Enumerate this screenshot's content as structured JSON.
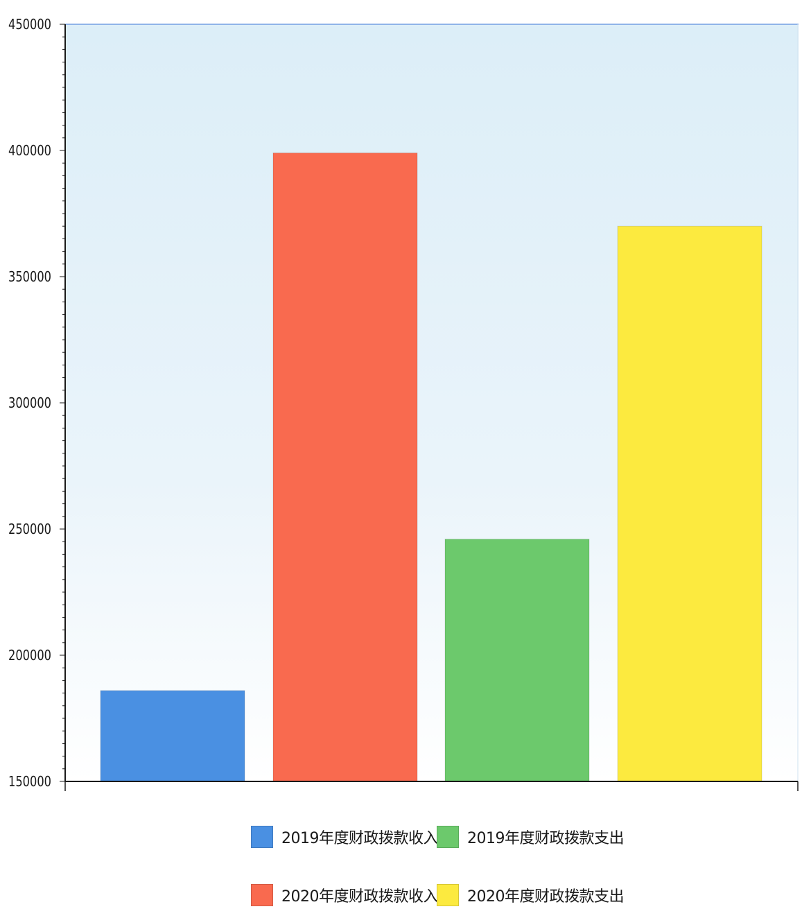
{
  "chart_data": {
    "type": "bar",
    "title": "",
    "xlabel": "",
    "ylabel": "",
    "ylim": [
      150000,
      450000
    ],
    "yticks": [
      150000,
      200000,
      250000,
      300000,
      350000,
      400000,
      450000
    ],
    "grid": false,
    "legend_position": "bottom",
    "series": [
      {
        "name": "2019年度财政拨款收入",
        "value": 186000,
        "color": "#4a90e2"
      },
      {
        "name": "2020年度财政拨款收入",
        "value": 399000,
        "color": "#f96a4f"
      },
      {
        "name": "2019年度财政拨款支出",
        "value": 246000,
        "color": "#6cc96c"
      },
      {
        "name": "2020年度财政拨款支出",
        "value": 370000,
        "color": "#fcea3f"
      }
    ],
    "legend_order": [
      0,
      2,
      1,
      3
    ]
  },
  "colors": {
    "background_top": "#dceef8",
    "background_bottom": "#ffffff",
    "axis": "#1a1a1a",
    "top_border": "#8fb3e8"
  }
}
